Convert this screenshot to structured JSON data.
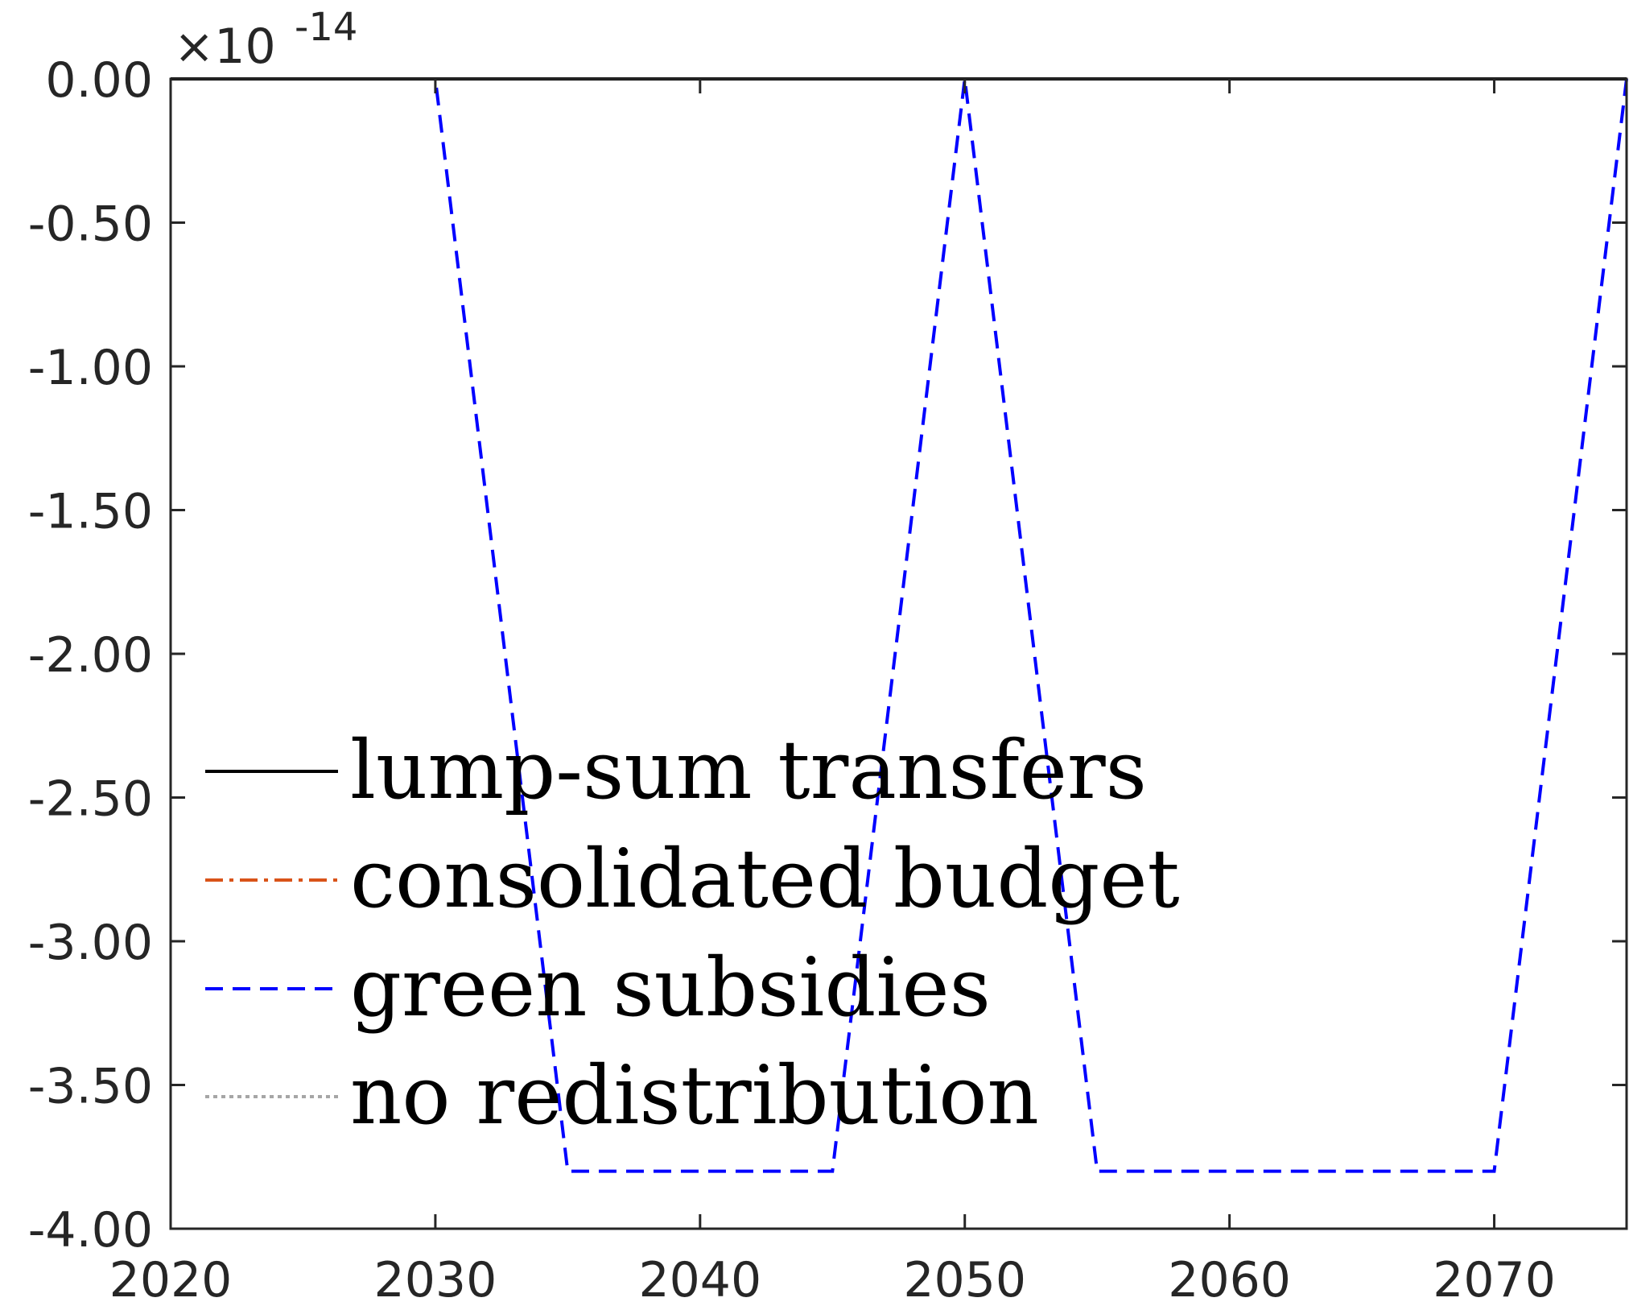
{
  "chart_data": {
    "type": "line",
    "title": "",
    "xlabel": "",
    "ylabel": "",
    "xlim": [
      2020,
      2075
    ],
    "ylim": [
      -4.0,
      0.0
    ],
    "y_exponent_label": "-14",
    "x_ticks": [
      2020,
      2030,
      2040,
      2050,
      2060,
      2070
    ],
    "x_tick_labels": [
      "2020",
      "2030",
      "2040",
      "2050",
      "2060",
      "2070"
    ],
    "y_ticks": [
      0.0,
      -0.5,
      -1.0,
      -1.5,
      -2.0,
      -2.5,
      -3.0,
      -3.5,
      -4.0
    ],
    "y_tick_labels": [
      "0.00",
      "-0.50",
      "-1.00",
      "-1.50",
      "-2.00",
      "-2.50",
      "-3.00",
      "-3.50",
      "-4.00"
    ],
    "grid": false,
    "legend_position": "bottom-left",
    "series": [
      {
        "name": "lump-sum transfers",
        "color": "#000000",
        "style": "solid",
        "x": [
          2020,
          2025,
          2030,
          2035,
          2040,
          2045,
          2050,
          2055,
          2060,
          2065,
          2070,
          2075
        ],
        "y": [
          0,
          0,
          0,
          0,
          0,
          0,
          0,
          0,
          0,
          0,
          0,
          0
        ]
      },
      {
        "name": "consolidated budget",
        "color": "#d95319",
        "style": "dashdot",
        "x": [
          2020,
          2025,
          2030,
          2035,
          2040,
          2045,
          2050,
          2055,
          2060,
          2065,
          2070,
          2075
        ],
        "y": [
          0,
          0,
          0,
          0,
          0,
          0,
          0,
          0,
          0,
          0,
          0,
          0
        ]
      },
      {
        "name": "green subsidies",
        "color": "#0000ff",
        "style": "dashed",
        "x": [
          2020,
          2025,
          2030,
          2035,
          2040,
          2045,
          2050,
          2055,
          2060,
          2065,
          2070,
          2075
        ],
        "y": [
          0,
          0,
          0,
          -3.8,
          -3.8,
          -3.8,
          0,
          -3.8,
          -3.8,
          -3.8,
          -3.8,
          0
        ]
      },
      {
        "name": "no redistribution",
        "color": "#a6a6a6",
        "style": "dotted",
        "x": [
          2020,
          2025,
          2030,
          2035,
          2040,
          2045,
          2050,
          2055,
          2060,
          2065,
          2070,
          2075
        ],
        "y": [
          0,
          0,
          0,
          0,
          0,
          0,
          0,
          0,
          0,
          0,
          0,
          0
        ]
      }
    ]
  }
}
